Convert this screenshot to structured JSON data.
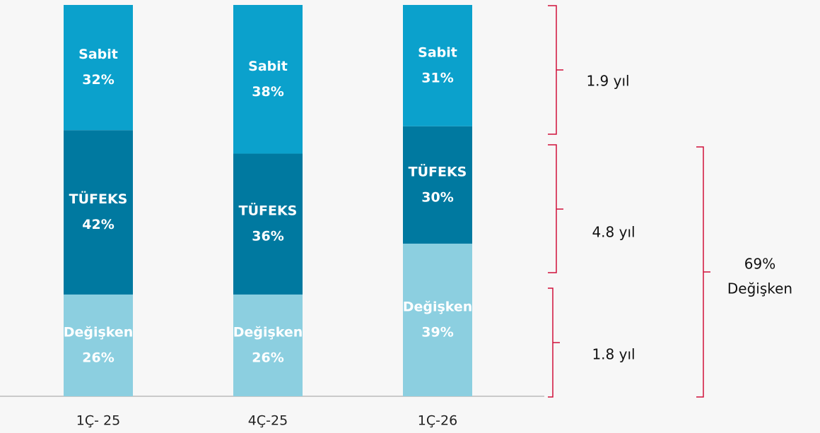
{
  "chart_data": {
    "type": "bar",
    "stacked": true,
    "categories": [
      "1Ç- 25",
      "4Ç-25",
      "1Ç-26"
    ],
    "series": [
      {
        "name": "Değişken",
        "color": "#8ccfe0",
        "values": [
          26,
          26,
          39
        ],
        "value_labels": [
          "26%",
          "26%",
          "39%"
        ]
      },
      {
        "name": "TÜFEKS",
        "color": "#0079a0",
        "values": [
          42,
          36,
          30
        ],
        "value_labels": [
          "42%",
          "36%",
          "30%"
        ]
      },
      {
        "name": "Sabit",
        "color": "#0ba1cc",
        "values": [
          32,
          38,
          31
        ],
        "value_labels": [
          "32%",
          "38%",
          "31%"
        ]
      }
    ],
    "brackets": [
      "1.9 yıl",
      "4.8 yıl",
      "1.8 yıl"
    ],
    "total_bracket": [
      "69%",
      "Değişken"
    ]
  }
}
